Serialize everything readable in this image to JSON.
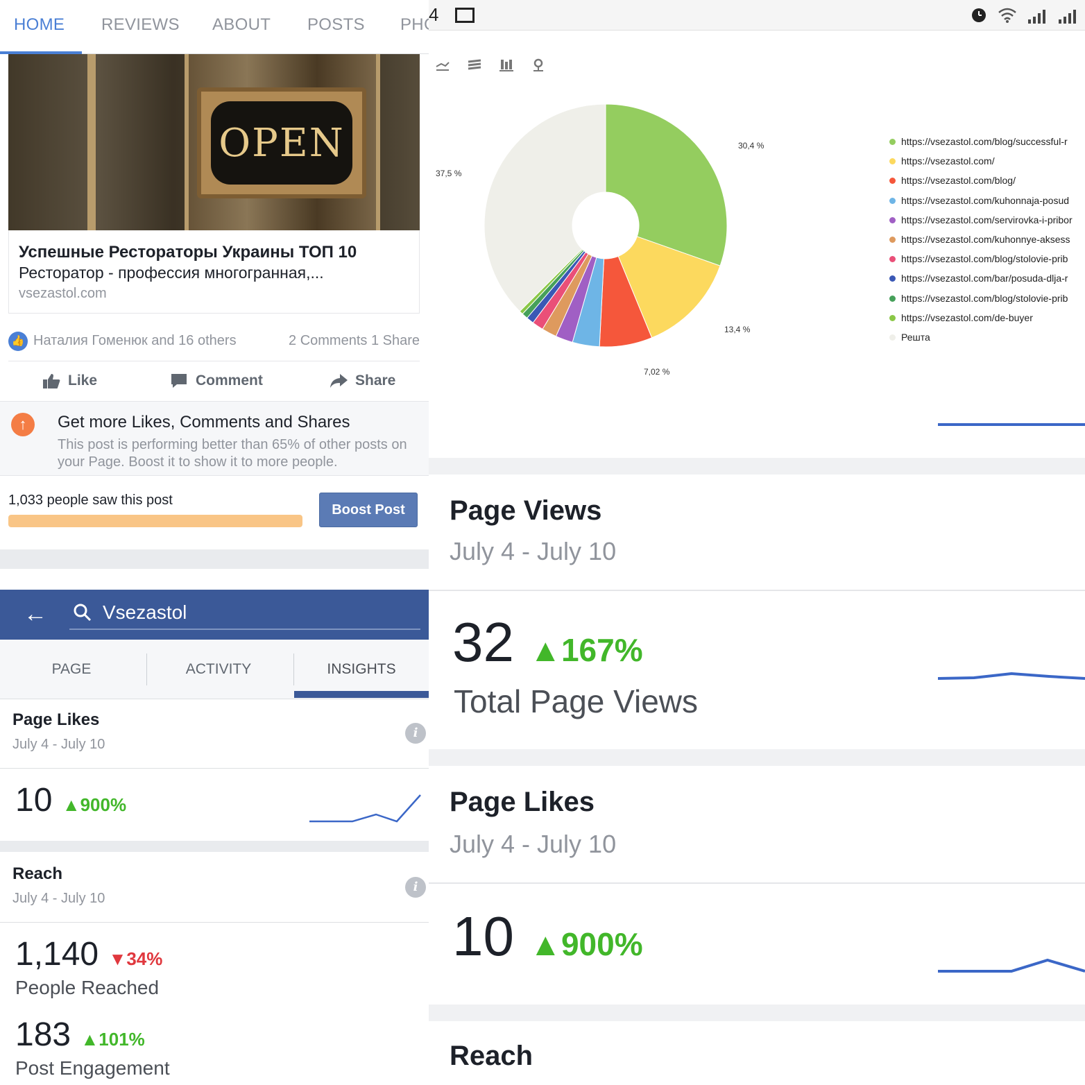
{
  "left": {
    "page_tabs": [
      {
        "label": "HOME",
        "active": true
      },
      {
        "label": "REVIEWS",
        "active": false
      },
      {
        "label": "ABOUT",
        "active": false
      },
      {
        "label": "POSTS",
        "active": false
      },
      {
        "label": "PHC",
        "active": false
      }
    ],
    "post": {
      "sign_text": "OPEN",
      "link_title": "Успешные Рестораторы Украины ТОП 10",
      "link_desc": "Ресторатор - профессия многогранная,...",
      "link_domain": "vsezastol.com",
      "reactions_text": "Наталия Гоменюк and 16 others",
      "counts_text": "2 Comments  1 Share",
      "actions": {
        "like": "Like",
        "comment": "Comment",
        "share": "Share"
      }
    },
    "boost_tip": {
      "heading": "Get more Likes, Comments and Shares",
      "body": "This post is performing better than 65% of other posts on your Page. Boost it to show it to more people."
    },
    "reach_text": "1,033 people saw this post",
    "boost_button": "Boost Post",
    "search": {
      "value": "Vsezastol"
    },
    "insight_tabs": [
      {
        "label": "PAGE",
        "active": false
      },
      {
        "label": "ACTIVITY",
        "active": false
      },
      {
        "label": "INSIGHTS",
        "active": true
      }
    ],
    "page_likes": {
      "title": "Page Likes",
      "date": "July 4 - July 10",
      "value": "10",
      "change": "900%"
    },
    "reach": {
      "title": "Reach",
      "date": "July 4 - July 10",
      "people_value": "1,140",
      "people_change": "34%",
      "people_label": "People Reached",
      "engagement_value": "183",
      "engagement_change": "101%",
      "engagement_label": "Post Engagement"
    }
  },
  "right": {
    "status": {
      "time": "4"
    },
    "chart_data": {
      "type": "pie",
      "donut": true,
      "slices": [
        {
          "label": "https://vsezastol.com/blog/successful-r",
          "value": 30.4,
          "color": "#94cd5f",
          "display": "30,4 %"
        },
        {
          "label": "https://vsezastol.com/",
          "value": 13.4,
          "color": "#fcd95e",
          "display": "13,4 %"
        },
        {
          "label": "https://vsezastol.com/blog/",
          "value": 7.02,
          "color": "#f5573b",
          "display": "7,02 %"
        },
        {
          "label": "https://vsezastol.com/kuhonnaja-posud",
          "value": 3.6,
          "color": "#6eb5e6",
          "display": ""
        },
        {
          "label": "https://vsezastol.com/servirovka-i-pribor",
          "value": 2.3,
          "color": "#a05fc4",
          "display": ""
        },
        {
          "label": "https://vsezastol.com/kuhonnye-aksess",
          "value": 2.0,
          "color": "#de9a5e",
          "display": ""
        },
        {
          "label": "https://vsezastol.com/blog/stolovie-prib",
          "value": 1.5,
          "color": "#ea4f78",
          "display": ""
        },
        {
          "label": "https://vsezastol.com/bar/posuda-dlja-r",
          "value": 1.0,
          "color": "#3a58b5",
          "display": ""
        },
        {
          "label": "https://vsezastol.com/blog/stolovie-prib",
          "value": 0.8,
          "color": "#46a05a",
          "display": ""
        },
        {
          "label": "https://vsezastol.com/de-buyer",
          "value": 0.5,
          "color": "#8ac746",
          "display": ""
        },
        {
          "label": "Решта",
          "value": 37.5,
          "color": "#efefe9",
          "display": "37,5 %"
        }
      ]
    },
    "page_views": {
      "title": "Page Views",
      "date": "July 4 - July 10",
      "value": "32",
      "change": "167%",
      "label": "Total Page Views"
    },
    "page_likes": {
      "title": "Page Likes",
      "date": "July 4 - July 10",
      "value": "10",
      "change": "900%"
    },
    "reach": {
      "title": "Reach"
    }
  }
}
